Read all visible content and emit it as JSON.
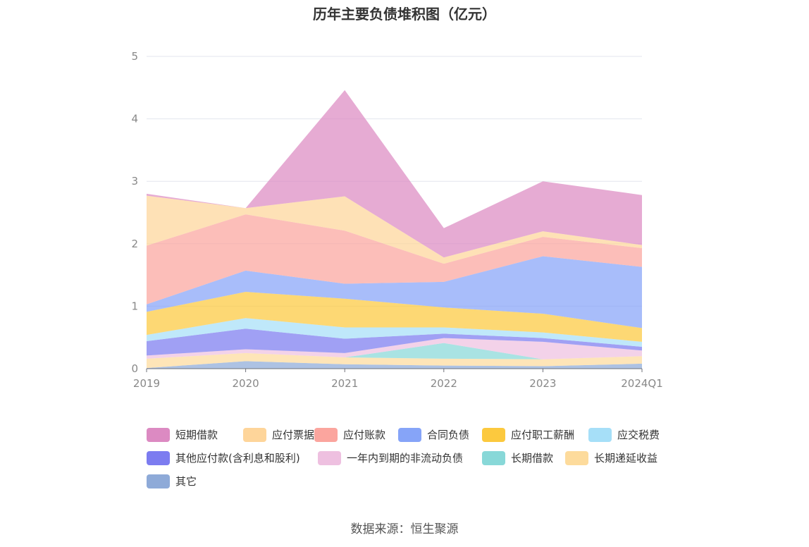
{
  "chart_data": {
    "type": "area",
    "stacked": true,
    "title": "历年主要负债堆积图（亿元）",
    "source": "数据来源：恒生聚源",
    "x": [
      "2019",
      "2020",
      "2021",
      "2022",
      "2023",
      "2024Q1"
    ],
    "ylim": [
      0,
      5
    ],
    "yticks": [
      "0",
      "1",
      "2",
      "3",
      "4",
      "5"
    ],
    "grid": true,
    "legend_position": "bottom",
    "series": [
      {
        "name": "其它",
        "color": "#8eaad8",
        "values": [
          0.01,
          0.12,
          0.07,
          0.05,
          0.04,
          0.08
        ]
      },
      {
        "name": "长期递延收益",
        "color": "#fddb9c",
        "values": [
          0.15,
          0.13,
          0.11,
          0.11,
          0.11,
          0.12
        ]
      },
      {
        "name": "长期借款",
        "color": "#88d8d8",
        "values": [
          0,
          0,
          0,
          0.25,
          0,
          0
        ]
      },
      {
        "name": "一年内到期的非流动负债",
        "color": "#eec0e0",
        "values": [
          0.05,
          0.06,
          0.07,
          0.08,
          0.28,
          0.09
        ]
      },
      {
        "name": "其他应付款(含利息和股利)",
        "color": "#7c7cf0",
        "values": [
          0.23,
          0.33,
          0.23,
          0.07,
          0.06,
          0.06
        ]
      },
      {
        "name": "应交税费",
        "color": "#a6dff8",
        "values": [
          0.1,
          0.17,
          0.18,
          0.1,
          0.09,
          0.08
        ]
      },
      {
        "name": "应付职工薪酬",
        "color": "#fcc93e",
        "values": [
          0.37,
          0.42,
          0.46,
          0.32,
          0.3,
          0.22
        ]
      },
      {
        "name": "合同负债",
        "color": "#86a4f8",
        "values": [
          0.12,
          0.34,
          0.24,
          0.41,
          0.92,
          0.98
        ]
      },
      {
        "name": "应付账款",
        "color": "#fba59e",
        "values": [
          0.94,
          0.9,
          0.85,
          0.29,
          0.31,
          0.3
        ]
      },
      {
        "name": "应付票据",
        "color": "#fed59a",
        "values": [
          0.8,
          0.1,
          0.55,
          0.1,
          0.09,
          0.05
        ]
      },
      {
        "name": "短期借款",
        "color": "#dc8ac2",
        "values": [
          0.03,
          0,
          1.7,
          0.47,
          0.8,
          0.8
        ]
      }
    ]
  },
  "legend_order": [
    "短期借款",
    "应付票据",
    "应付账款",
    "合同负债",
    "应付职工薪酬",
    "应交税费",
    "其他应付款(含利息和股利)",
    "一年内到期的非流动负债",
    "长期借款",
    "长期递延收益",
    "其它"
  ]
}
